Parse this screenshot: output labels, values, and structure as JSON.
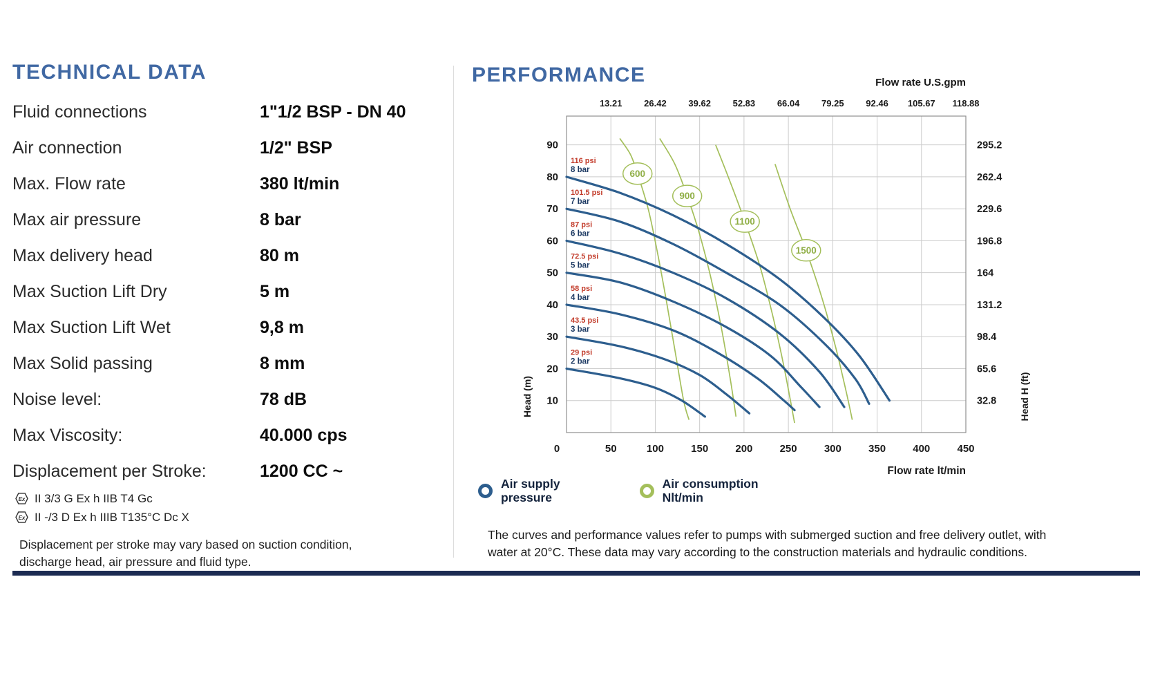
{
  "technical": {
    "title": "TECHNICAL DATA",
    "rows": [
      {
        "label": "Fluid connections",
        "value": "1\"1/2 BSP - DN 40"
      },
      {
        "label": "Air connection",
        "value": "1/2\" BSP"
      },
      {
        "label": "Max. Flow rate",
        "value": "380 lt/min"
      },
      {
        "label": "Max air pressure",
        "value": "8 bar"
      },
      {
        "label": "Max delivery head",
        "value": "80 m"
      },
      {
        "label": "Max Suction Lift Dry",
        "value": "5 m"
      },
      {
        "label": "Max Suction Lift Wet",
        "value": "9,8 m"
      },
      {
        "label": "Max Solid passing",
        "value": "8 mm"
      },
      {
        "label": "Noise level:",
        "value": "78 dB"
      },
      {
        "label": "Max Viscosity:",
        "value": "40.000 cps"
      },
      {
        "label": "Displacement per Stroke:",
        "value": "1200 CC ~"
      }
    ],
    "atex_icon_label": "Ex",
    "atex_lines": [
      {
        "text": "II 3/3 G Ex h IIB T4 Gc"
      },
      {
        "text": "II -/3 D Ex h IIIB T135°C Dc X"
      }
    ],
    "note": "Displacement per stroke may vary based on suction condition, discharge head, air pressure and fluid type."
  },
  "performance": {
    "title": "PERFORMANCE",
    "legend": [
      {
        "line1": "Air supply",
        "line2": "pressure",
        "color": "#2d5e8e"
      },
      {
        "line1": "Air consumption",
        "line2": "Nlt/min",
        "color": "#a4bf5b"
      }
    ],
    "note": "The curves and performance values refer to pumps with submerged suction and free delivery outlet, with water at 20°C. These data may vary according to the construction materials and hydraulic conditions."
  },
  "chart_data": {
    "type": "line",
    "title": "PERFORMANCE",
    "top_axis": {
      "label": "Flow rate U.S.gpm",
      "ticks": [
        "13.21",
        "26.42",
        "39.62",
        "52.83",
        "66.04",
        "79.25",
        "92.46",
        "105.67",
        "118.88"
      ]
    },
    "x_axis": {
      "label": "Flow rate  lt/min",
      "ticks": [
        0,
        50,
        100,
        150,
        200,
        250,
        300,
        350,
        400,
        450
      ],
      "range": [
        0,
        450
      ],
      "grid": true
    },
    "y_axis": {
      "label": "Head (m)",
      "ticks": [
        10,
        20,
        30,
        40,
        50,
        60,
        70,
        80,
        90
      ],
      "range": [
        0,
        99
      ]
    },
    "right_axis": {
      "label": "Head H (ft)",
      "ticks": [
        "295.2",
        "262.4",
        "229.6",
        "196.8",
        "164",
        "131.2",
        "98.4",
        "65.6",
        "32.8"
      ]
    },
    "pressure_curves": [
      {
        "psi": "116 psi",
        "bar": "8 bar",
        "points": [
          [
            0,
            80
          ],
          [
            60,
            75
          ],
          [
            120,
            68
          ],
          [
            180,
            59
          ],
          [
            240,
            48
          ],
          [
            290,
            36
          ],
          [
            330,
            24
          ],
          [
            364,
            10
          ]
        ]
      },
      {
        "psi": "101.5 psi",
        "bar": "7 bar",
        "points": [
          [
            0,
            70
          ],
          [
            60,
            66
          ],
          [
            120,
            59
          ],
          [
            180,
            50
          ],
          [
            240,
            40
          ],
          [
            290,
            28
          ],
          [
            325,
            17
          ],
          [
            341,
            9
          ]
        ]
      },
      {
        "psi": "87 psi",
        "bar": "6 bar",
        "points": [
          [
            0,
            60
          ],
          [
            60,
            56
          ],
          [
            120,
            50
          ],
          [
            180,
            42
          ],
          [
            240,
            31
          ],
          [
            285,
            19
          ],
          [
            313,
            8
          ]
        ]
      },
      {
        "psi": "72.5 psi",
        "bar": "5 bar",
        "points": [
          [
            0,
            50
          ],
          [
            60,
            47
          ],
          [
            120,
            41
          ],
          [
            180,
            33
          ],
          [
            230,
            24
          ],
          [
            265,
            14
          ],
          [
            285,
            8
          ]
        ]
      },
      {
        "psi": "58 psi",
        "bar": "4 bar",
        "points": [
          [
            0,
            40
          ],
          [
            60,
            37
          ],
          [
            120,
            32
          ],
          [
            170,
            25
          ],
          [
            215,
            17
          ],
          [
            245,
            10
          ],
          [
            257,
            7
          ]
        ]
      },
      {
        "psi": "43.5 psi",
        "bar": "3 bar",
        "points": [
          [
            0,
            30
          ],
          [
            60,
            27
          ],
          [
            110,
            23
          ],
          [
            150,
            18
          ],
          [
            180,
            12
          ],
          [
            206,
            6
          ]
        ]
      },
      {
        "psi": "29 psi",
        "bar": "2 bar",
        "points": [
          [
            0,
            20
          ],
          [
            60,
            17
          ],
          [
            100,
            14
          ],
          [
            130,
            10
          ],
          [
            156,
            5
          ]
        ]
      }
    ],
    "consumption_curves": [
      {
        "label": "600",
        "label_at": [
          80,
          81
        ],
        "points": [
          [
            60,
            92
          ],
          [
            72,
            87
          ],
          [
            80,
            81
          ],
          [
            92,
            70
          ],
          [
            102,
            57
          ],
          [
            112,
            42
          ],
          [
            122,
            26
          ],
          [
            132,
            10
          ],
          [
            138,
            4
          ]
        ]
      },
      {
        "label": "900",
        "label_at": [
          136,
          74
        ],
        "points": [
          [
            105,
            92
          ],
          [
            122,
            84
          ],
          [
            136,
            74
          ],
          [
            150,
            62
          ],
          [
            163,
            48
          ],
          [
            175,
            32
          ],
          [
            185,
            16
          ],
          [
            191,
            5
          ]
        ]
      },
      {
        "label": "1100",
        "label_at": [
          201,
          66
        ],
        "points": [
          [
            168,
            90
          ],
          [
            185,
            78
          ],
          [
            201,
            66
          ],
          [
            218,
            52
          ],
          [
            232,
            37
          ],
          [
            244,
            22
          ],
          [
            253,
            9
          ],
          [
            257,
            3
          ]
        ]
      },
      {
        "label": "1500",
        "label_at": [
          270,
          57
        ],
        "points": [
          [
            235,
            84
          ],
          [
            252,
            70
          ],
          [
            270,
            57
          ],
          [
            288,
            42
          ],
          [
            303,
            27
          ],
          [
            315,
            13
          ],
          [
            322,
            4
          ]
        ]
      }
    ],
    "colors": {
      "pressure": "#2d5e8e",
      "consumption": "#a4bf5b",
      "psi_text": "#c23b2a",
      "bar_text": "#1d3a63",
      "grid": "#cccccc",
      "border": "#909090",
      "tick_text": "#1a1a1a"
    },
    "legend_position": "bottom"
  }
}
